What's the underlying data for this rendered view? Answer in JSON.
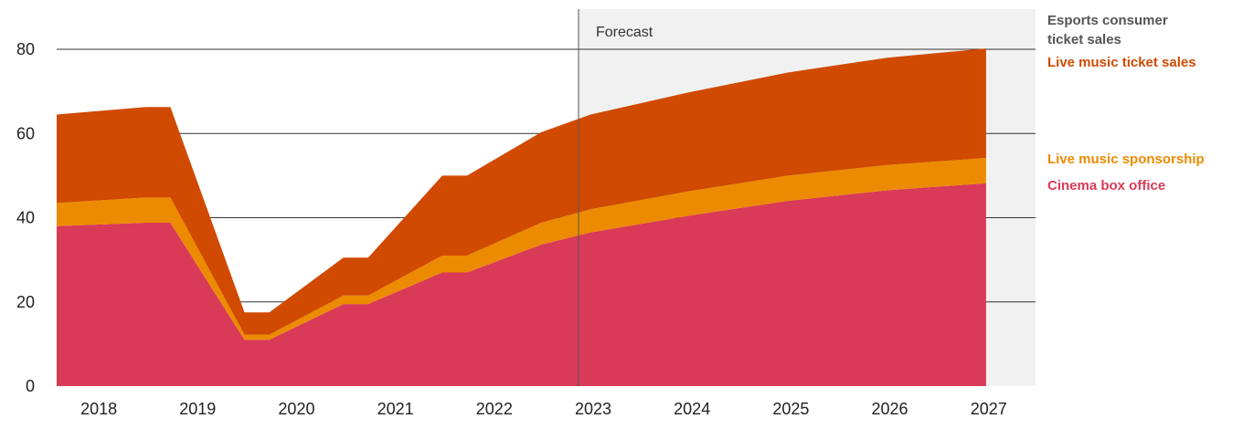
{
  "chart_data": {
    "type": "area",
    "stacked": true,
    "x": [
      2017.6,
      2018.5,
      2018.75,
      2019.5,
      2019.75,
      2020.5,
      2020.75,
      2021.5,
      2021.75,
      2022.5,
      2023,
      2024,
      2025,
      2026,
      2027
    ],
    "xticks": [
      "2018",
      "2019",
      "2020",
      "2021",
      "2022",
      "2023",
      "2024",
      "2025",
      "2026",
      "2027"
    ],
    "xlim": [
      2017.6,
      2027.5
    ],
    "yticks": [
      "0",
      "20",
      "40",
      "60",
      "80"
    ],
    "ylim": [
      0,
      80
    ],
    "grid": "horizontal",
    "forecast_start": 2022.5,
    "forecast_label": "Forecast",
    "legend_position": "right",
    "series": [
      {
        "name": "Cinema box office",
        "color": "#d93a57",
        "values": [
          38,
          38.8,
          38.8,
          11,
          11,
          19.5,
          19.5,
          27,
          27,
          33.6,
          36.5,
          40.5,
          44,
          46.5,
          48.2
        ]
      },
      {
        "name": "Live music sponsorship",
        "color": "#ec8b00",
        "values": [
          5.5,
          6,
          6,
          1.2,
          1.2,
          2,
          2,
          4,
          4,
          5.2,
          5.5,
          5.8,
          6,
          6,
          6
        ]
      },
      {
        "name": "Live music ticket sales",
        "color": "#d04a02",
        "values": [
          21,
          21.5,
          21.5,
          5.3,
          5.3,
          9,
          9,
          19,
          19,
          21.5,
          22.5,
          23.5,
          24.5,
          25.5,
          26
        ]
      },
      {
        "name": "Esports consumer ticket sales",
        "color": "#555555",
        "values": [
          0,
          0,
          0,
          0,
          0,
          0,
          0,
          0,
          0,
          0,
          0,
          0,
          0,
          0,
          0
        ]
      }
    ]
  },
  "legend": {
    "esports_line1": "Esports consumer",
    "esports_line2": "ticket sales",
    "live_music_ticket": "Live music ticket sales",
    "live_music_sponsorship": "Live music sponsorship",
    "cinema": "Cinema box office"
  }
}
